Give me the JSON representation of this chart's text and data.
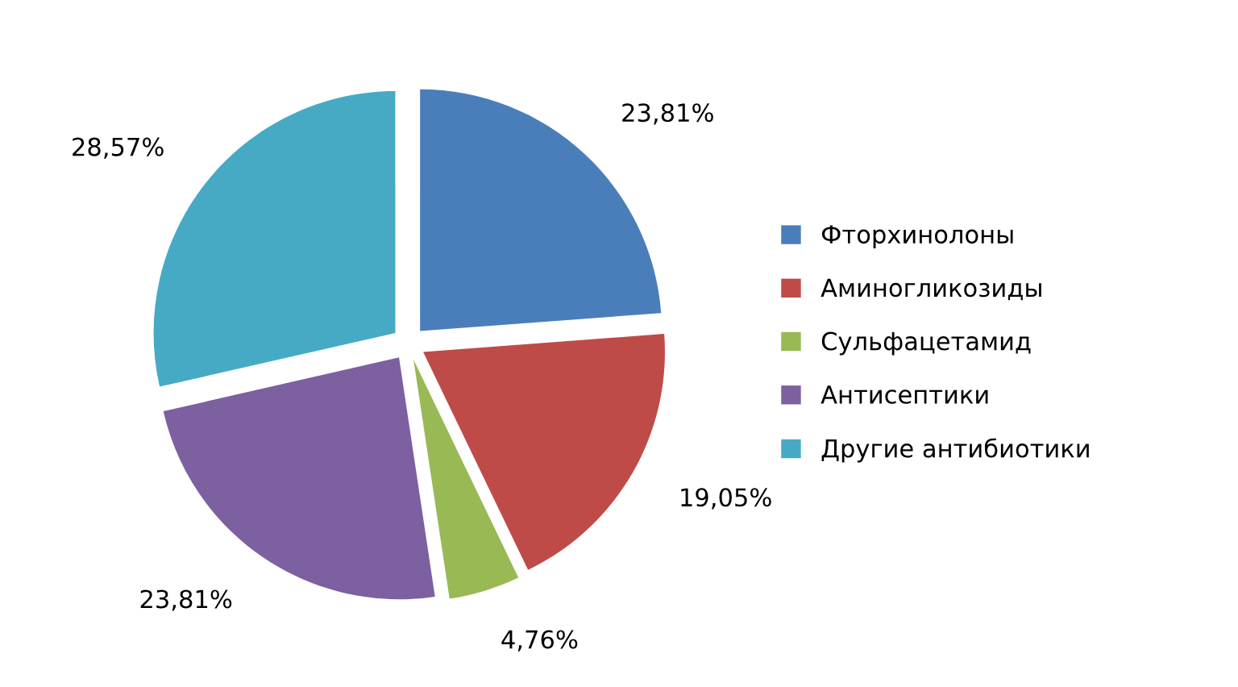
{
  "chart_data": {
    "type": "pie",
    "categories": [
      "Фторхинолоны",
      "Аминогликозиды",
      "Сульфацетамид",
      "Антисептики",
      "Другие антибиотики"
    ],
    "values": [
      23.81,
      19.05,
      4.76,
      23.81,
      28.57
    ],
    "value_labels": [
      "23,81%",
      "19,05%",
      "4,76%",
      "23,81%",
      "28,57%"
    ],
    "colors": [
      "#4a7ebb",
      "#be4b48",
      "#98b954",
      "#7d60a0",
      "#46aac5"
    ],
    "legend": "right"
  }
}
